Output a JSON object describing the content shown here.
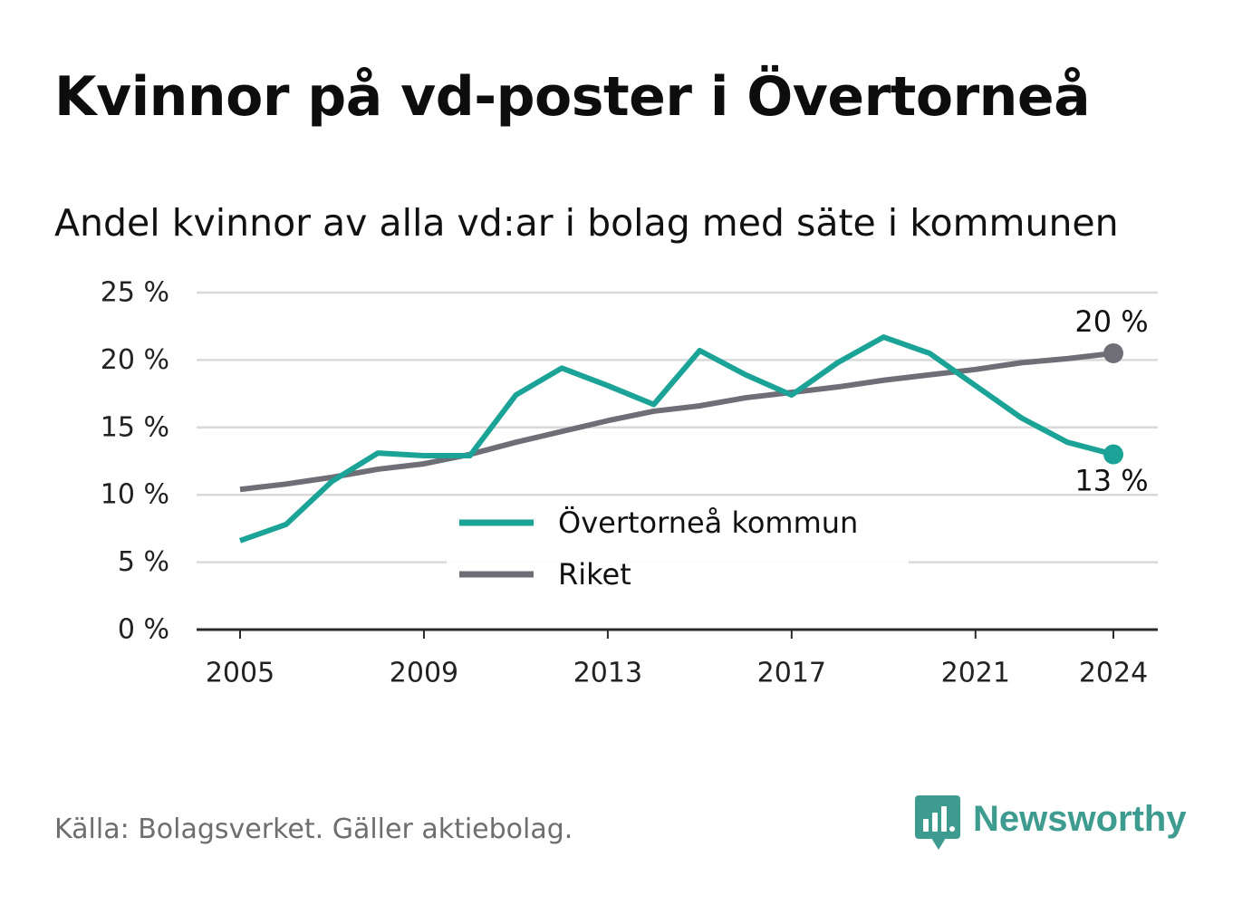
{
  "header": {
    "title": "Kvinnor på vd-poster i Övertorneå",
    "subtitle": "Andel kvinnor av alla vd:ar i bolag med säte i kommunen"
  },
  "footer": {
    "source": "Källa: Bolagsverket. Gäller aktiebolag.",
    "brand": "Newsworthy",
    "brand_icon": "newsworthy-chart-icon"
  },
  "colors": {
    "municipality": "#1aa396",
    "nation": "#6f6d76",
    "grid": "#d9d9d9",
    "axis": "#2b2b2b",
    "brand": "#3e9b8f"
  },
  "chart_data": {
    "type": "line",
    "x": [
      2005,
      2006,
      2007,
      2008,
      2009,
      2010,
      2011,
      2012,
      2013,
      2014,
      2015,
      2016,
      2017,
      2018,
      2019,
      2020,
      2021,
      2022,
      2023,
      2024
    ],
    "xticks": [
      2005,
      2009,
      2013,
      2017,
      2021,
      2024
    ],
    "xtick_labels": [
      "2005",
      "2009",
      "2013",
      "2017",
      "2021",
      "2024"
    ],
    "ylim": [
      0,
      25
    ],
    "yticks": [
      0,
      5,
      10,
      15,
      20,
      25
    ],
    "ytick_labels": [
      "0 %",
      "5 %",
      "10 %",
      "15 %",
      "20 %",
      "25 %"
    ],
    "grid": true,
    "legend_position": "center-bottom",
    "series": [
      {
        "name": "Övertorneå kommun",
        "color": "#1aa396",
        "values": [
          6.6,
          7.8,
          11.0,
          13.1,
          12.9,
          12.9,
          17.4,
          19.4,
          18.1,
          16.7,
          20.7,
          18.9,
          17.4,
          19.8,
          21.7,
          20.5,
          18.1,
          15.7,
          13.9,
          13.0
        ],
        "end_label": "13 %"
      },
      {
        "name": "Riket",
        "color": "#6f6d76",
        "values": [
          10.4,
          10.8,
          11.3,
          11.9,
          12.3,
          13.0,
          13.9,
          14.7,
          15.5,
          16.2,
          16.6,
          17.2,
          17.6,
          18.0,
          18.5,
          18.9,
          19.3,
          19.8,
          20.1,
          20.5
        ],
        "end_label": "20 %"
      }
    ]
  }
}
